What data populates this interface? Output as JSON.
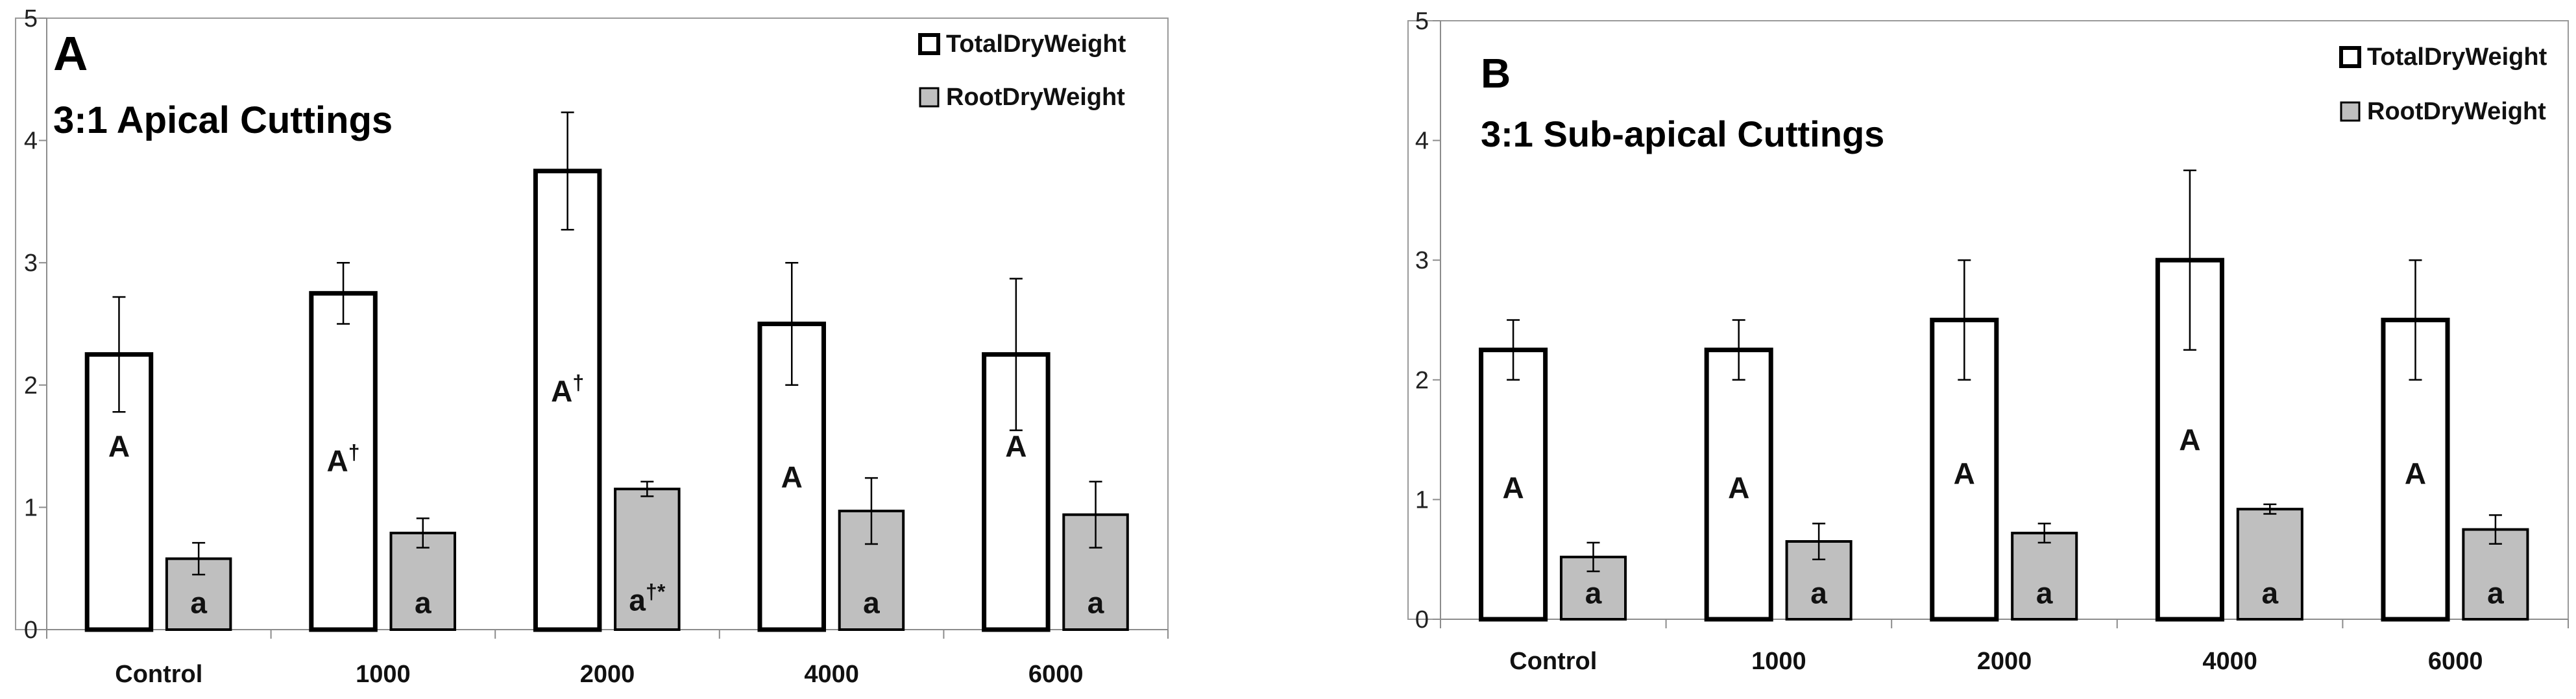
{
  "chart_data": [
    {
      "type": "bar",
      "panel_label": "A",
      "title": "3:1 Apical Cuttings",
      "xlabel": "",
      "ylabel": "",
      "ylim": [
        0,
        5
      ],
      "y_ticks": [
        "0",
        "1",
        "2",
        "3",
        "4",
        "5"
      ],
      "categories": [
        "Control",
        "1000",
        "2000",
        "4000",
        "6000"
      ],
      "legend_position": "top-right",
      "series": [
        {
          "name": "TotalDryWeight",
          "color": "#ffffff",
          "values": [
            2.25,
            2.75,
            3.75,
            2.5,
            2.25
          ],
          "errors": [
            0.47,
            0.25,
            0.48,
            0.5,
            0.62
          ],
          "labels": [
            {
              "letter": "A",
              "mark": ""
            },
            {
              "letter": "A",
              "mark": "†"
            },
            {
              "letter": "A",
              "mark": "†"
            },
            {
              "letter": "A",
              "mark": ""
            },
            {
              "letter": "A",
              "mark": ""
            }
          ],
          "label_values": [
            1.5,
            1.38,
            1.95,
            1.25,
            1.5
          ]
        },
        {
          "name": "RootDryWeight",
          "color": "#bfbfbf",
          "values": [
            0.58,
            0.79,
            1.15,
            0.97,
            0.94
          ],
          "errors": [
            0.13,
            0.12,
            0.06,
            0.27,
            0.27
          ],
          "labels": [
            {
              "letter": "a",
              "mark": ""
            },
            {
              "letter": "a",
              "mark": ""
            },
            {
              "letter": "a",
              "mark": "†*"
            },
            {
              "letter": "a",
              "mark": ""
            },
            {
              "letter": "a",
              "mark": ""
            }
          ],
          "label_values": [
            0.22,
            0.22,
            0.24,
            0.22,
            0.22
          ]
        }
      ]
    },
    {
      "type": "bar",
      "panel_label": "B",
      "title": "3:1 Sub-apical Cuttings",
      "xlabel": "",
      "ylabel": "",
      "ylim": [
        0,
        5
      ],
      "y_ticks": [
        "0",
        "1",
        "2",
        "3",
        "4",
        "5"
      ],
      "categories": [
        "Control",
        "1000",
        "2000",
        "4000",
        "6000"
      ],
      "legend_position": "top-right",
      "series": [
        {
          "name": "TotalDryWeight",
          "color": "#ffffff",
          "values": [
            2.25,
            2.25,
            2.5,
            3.0,
            2.5
          ],
          "errors": [
            0.25,
            0.25,
            0.5,
            0.75,
            0.5
          ],
          "labels": [
            {
              "letter": "A",
              "mark": ""
            },
            {
              "letter": "A",
              "mark": ""
            },
            {
              "letter": "A",
              "mark": ""
            },
            {
              "letter": "A",
              "mark": ""
            },
            {
              "letter": "A",
              "mark": ""
            }
          ],
          "label_values": [
            1.1,
            1.1,
            1.22,
            1.5,
            1.22
          ]
        },
        {
          "name": "RootDryWeight",
          "color": "#bfbfbf",
          "values": [
            0.52,
            0.65,
            0.72,
            0.92,
            0.75
          ],
          "errors": [
            0.12,
            0.15,
            0.08,
            0.04,
            0.12
          ],
          "labels": [
            {
              "letter": "a",
              "mark": ""
            },
            {
              "letter": "a",
              "mark": ""
            },
            {
              "letter": "a",
              "mark": ""
            },
            {
              "letter": "a",
              "mark": ""
            },
            {
              "letter": "a",
              "mark": ""
            }
          ],
          "label_values": [
            0.22,
            0.22,
            0.22,
            0.22,
            0.22
          ]
        }
      ]
    }
  ]
}
